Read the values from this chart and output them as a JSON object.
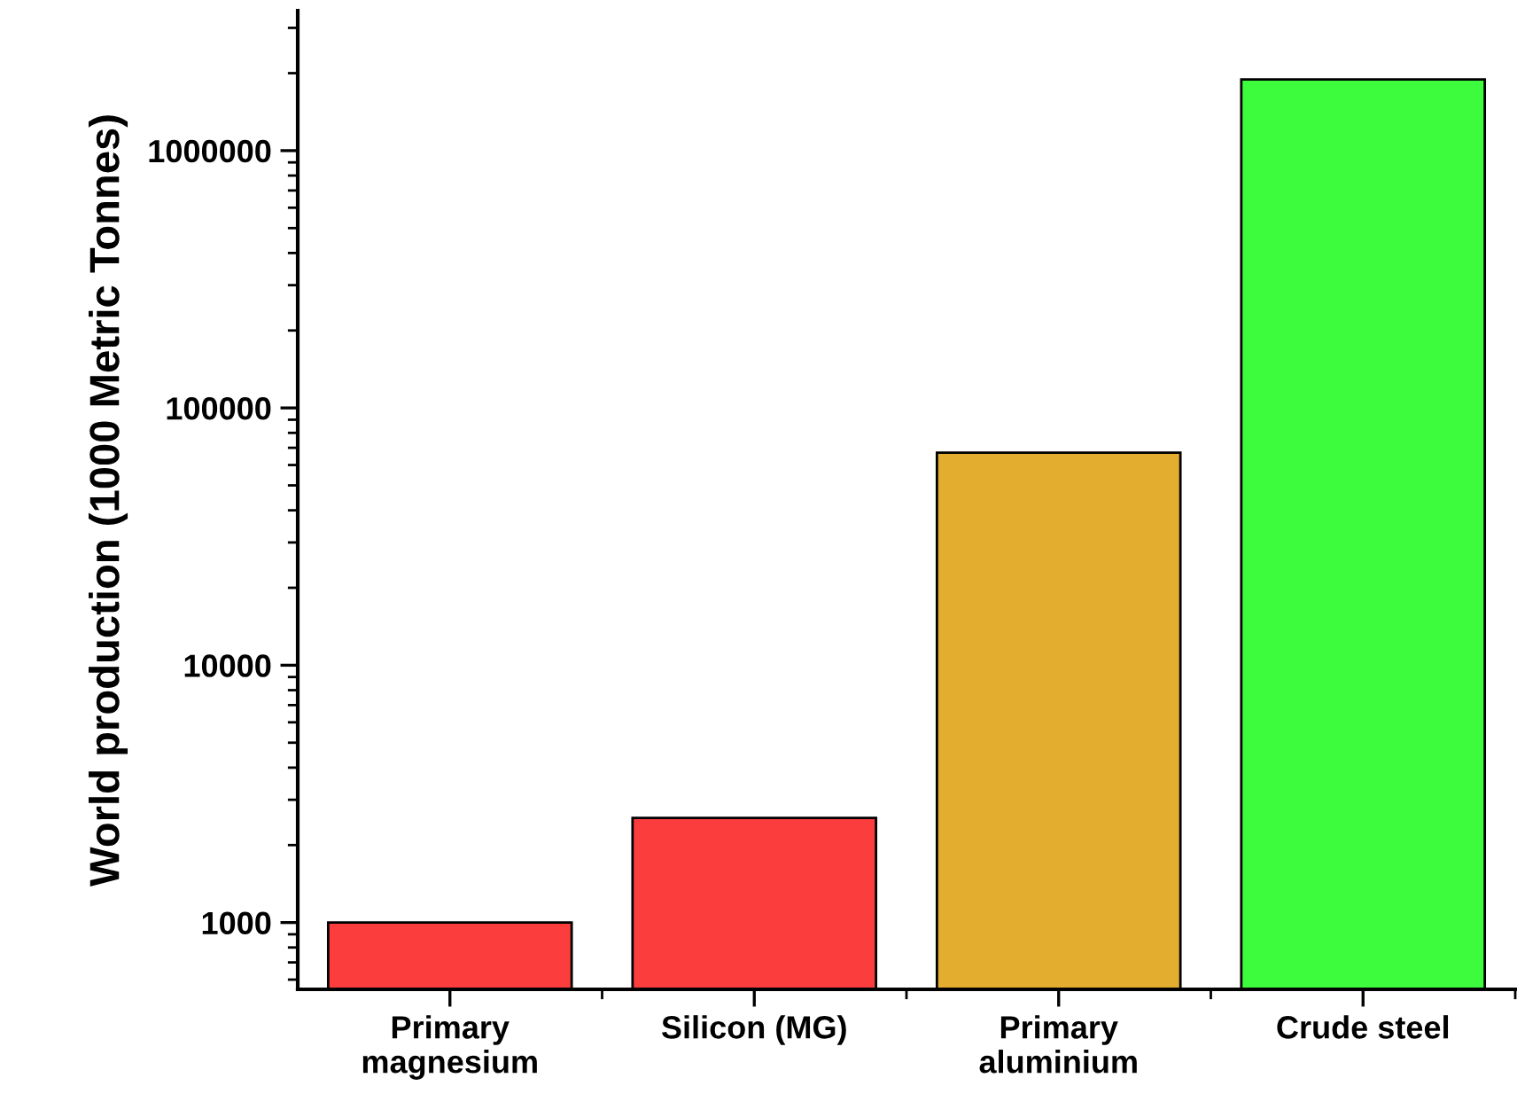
{
  "chart_data": {
    "type": "bar",
    "ylabel": "World production (1000 Metric Tonnes)",
    "categories": [
      "Primary\nmagnesium",
      "Silicon (MG)",
      "Primary\naluminium",
      "Crude steel"
    ],
    "values": [
      1000,
      2550,
      67000,
      1890000
    ],
    "colors": [
      "#fc3d3d",
      "#fc3d3d",
      "#e3ae30",
      "#3dfc3d"
    ],
    "log": true,
    "ylim": [
      550,
      3500000
    ],
    "yticks": [
      1000,
      10000,
      100000,
      1000000
    ],
    "grid": false,
    "legend": false
  }
}
